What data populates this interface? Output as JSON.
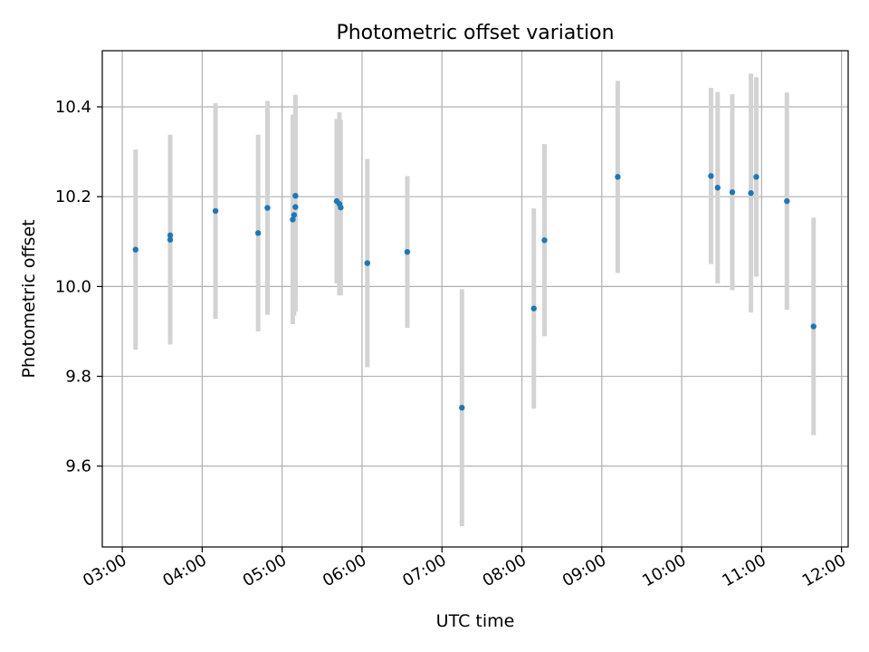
{
  "chart_data": {
    "type": "scatter",
    "title": "Photometric offset variation",
    "xlabel": "UTC time",
    "ylabel": "Photometric offset",
    "x_unit": "time of day (UTC)",
    "xlim": [
      "02:45",
      "12:05"
    ],
    "ylim": [
      9.42,
      10.525
    ],
    "x_ticks": [
      "03:00",
      "04:00",
      "05:00",
      "06:00",
      "07:00",
      "08:00",
      "09:00",
      "10:00",
      "11:00",
      "12:00"
    ],
    "y_ticks": [
      9.6,
      9.8,
      10.0,
      10.2,
      10.4
    ],
    "y_tick_labels": [
      "9.6",
      "9.8",
      "10.0",
      "10.2",
      "10.4"
    ],
    "grid": true,
    "colors": {
      "point": "#1f77b4",
      "errorbar": "#d3d3d3",
      "grid": "#b0b0b0"
    },
    "points": [
      {
        "x": "03:10",
        "y": 10.082,
        "err": 0.223
      },
      {
        "x": "03:36",
        "y": 10.104,
        "err": 0.233
      },
      {
        "x": "03:36",
        "y": 10.114,
        "err": 0.224
      },
      {
        "x": "04:10",
        "y": 10.168,
        "err": 0.24
      },
      {
        "x": "04:42",
        "y": 10.119,
        "err": 0.219
      },
      {
        "x": "04:49",
        "y": 10.175,
        "err": 0.238
      },
      {
        "x": "05:08",
        "y": 10.149,
        "err": 0.233
      },
      {
        "x": "05:09",
        "y": 10.159,
        "err": 0.224
      },
      {
        "x": "05:10",
        "y": 10.202,
        "err": 0.225
      },
      {
        "x": "05:10",
        "y": 10.177,
        "err": 0.233
      },
      {
        "x": "05:41",
        "y": 10.19,
        "err": 0.183
      },
      {
        "x": "05:43",
        "y": 10.184,
        "err": 0.204
      },
      {
        "x": "05:44",
        "y": 10.176,
        "err": 0.195
      },
      {
        "x": "06:04",
        "y": 10.052,
        "err": 0.232
      },
      {
        "x": "06:34",
        "y": 10.077,
        "err": 0.169
      },
      {
        "x": "07:15",
        "y": 9.73,
        "err": 0.264
      },
      {
        "x": "08:09",
        "y": 9.951,
        "err": 0.223
      },
      {
        "x": "08:17",
        "y": 10.103,
        "err": 0.214
      },
      {
        "x": "09:12",
        "y": 10.244,
        "err": 0.214
      },
      {
        "x": "10:22",
        "y": 10.246,
        "err": 0.196
      },
      {
        "x": "10:27",
        "y": 10.22,
        "err": 0.213
      },
      {
        "x": "10:38",
        "y": 10.21,
        "err": 0.218
      },
      {
        "x": "10:52",
        "y": 10.208,
        "err": 0.266
      },
      {
        "x": "10:56",
        "y": 10.244,
        "err": 0.222
      },
      {
        "x": "11:19",
        "y": 10.19,
        "err": 0.242
      },
      {
        "x": "11:39",
        "y": 9.911,
        "err": 0.242
      }
    ]
  }
}
